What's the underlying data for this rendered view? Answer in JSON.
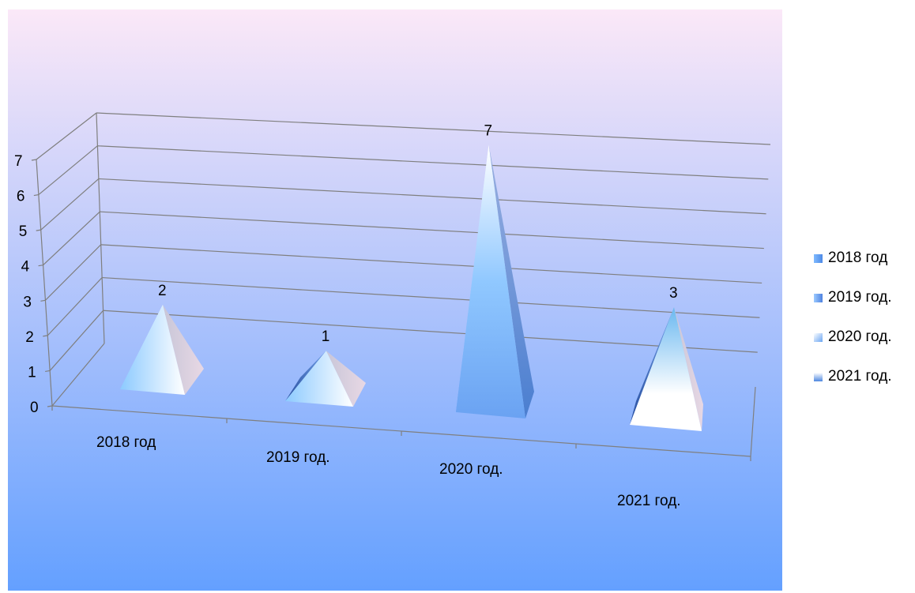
{
  "chart_data": {
    "type": "bar",
    "shape": "pyramid-3d",
    "categories": [
      "2018 год",
      "2019 год.",
      "2020 год.",
      "2021 год."
    ],
    "values": [
      2,
      1,
      7,
      3
    ],
    "data_labels": [
      "2",
      "1",
      "7",
      "3"
    ],
    "yticks": [
      "0",
      "1",
      "2",
      "3",
      "4",
      "5",
      "6",
      "7"
    ],
    "ylim": [
      0,
      7
    ],
    "grid": true,
    "legend_position": "right",
    "legend": [
      "2018 год",
      "2019 год.",
      "2020 год.",
      "2021 год."
    ],
    "title": "",
    "xlabel": "",
    "ylabel": ""
  },
  "colors": {
    "background_top": "#fbe8f8",
    "background_bottom": "#64a0ff",
    "gridline": "#7f7f7f",
    "pyramid_light": "#ffffff",
    "pyramid_mid": "#8cc8ff",
    "pyramid_dark": "#5b8ee6"
  }
}
